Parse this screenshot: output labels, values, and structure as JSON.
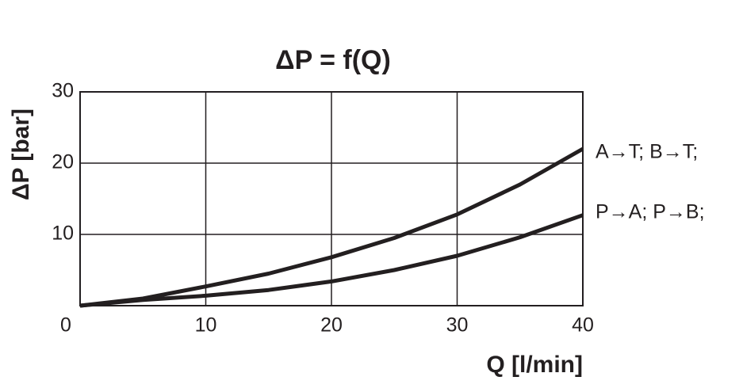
{
  "chart_data": {
    "type": "line",
    "title": "ΔP = f(Q)",
    "x_label": "Q [l/min]",
    "y_label": "ΔP [bar]",
    "x": [
      0,
      5,
      10,
      15,
      20,
      25,
      30,
      35,
      40
    ],
    "series": [
      {
        "name": "A→T; B→T;",
        "color": "#231f20",
        "values": [
          0,
          1.0,
          2.7,
          4.5,
          6.8,
          9.5,
          12.8,
          17,
          22
        ]
      },
      {
        "name": "P→A; P→B;",
        "color": "#231f20",
        "values": [
          0,
          0.8,
          1.4,
          2.2,
          3.4,
          5,
          7,
          9.6,
          12.7
        ]
      }
    ],
    "xlim": [
      0,
      40
    ],
    "ylim": [
      0,
      30
    ],
    "xticks": [
      0,
      10,
      20,
      30,
      40
    ],
    "yticks": [
      10,
      20,
      30
    ],
    "grid": true
  }
}
